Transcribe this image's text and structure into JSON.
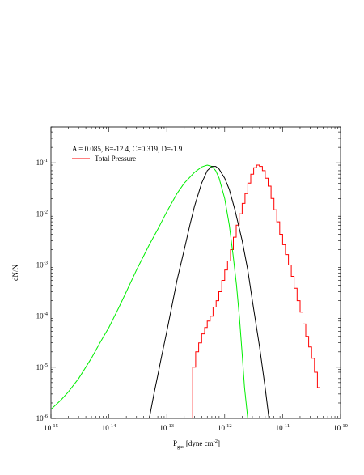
{
  "chart_data": {
    "type": "line",
    "xscale": "log",
    "yscale": "log",
    "xlim": [
      1e-15,
      1e-10
    ],
    "ylim": [
      1e-06,
      0.5
    ],
    "x_tick_labels": [
      {
        "base": "10",
        "exp": "-15"
      },
      {
        "base": "10",
        "exp": "-14"
      },
      {
        "base": "10",
        "exp": "-13"
      },
      {
        "base": "10",
        "exp": "-12"
      },
      {
        "base": "10",
        "exp": "-11"
      },
      {
        "base": "10",
        "exp": "-10"
      }
    ],
    "y_tick_labels": [
      {
        "base": "10",
        "exp": "-6"
      },
      {
        "base": "10",
        "exp": "-5"
      },
      {
        "base": "10",
        "exp": "-4"
      },
      {
        "base": "10",
        "exp": "-3"
      },
      {
        "base": "10",
        "exp": "-2"
      },
      {
        "base": "10",
        "exp": "-1"
      }
    ],
    "xlabel": {
      "prefix": "P",
      "sub": "gas",
      "mid": " [dyne cm",
      "sup": "-2",
      "suffix": "]"
    },
    "ylabel": "dN/N",
    "annotation": "A = 0.085, B=-12.4, C=0.319, D=-1.9",
    "grid": false,
    "legend_position": "top-left",
    "series": [
      {
        "name": "Total Pressure",
        "kind": "step",
        "color": "#ff0000",
        "x": [
          2.5e-13,
          2.8e-13,
          3.15e-13,
          3.55e-13,
          4e-13,
          4.5e-13,
          5e-13,
          5.6e-13,
          6.3e-13,
          7.1e-13,
          7.9e-13,
          8.9e-13,
          1e-12,
          1.12e-12,
          1.26e-12,
          1.41e-12,
          1.58e-12,
          1.78e-12,
          2e-12,
          2.24e-12,
          2.51e-12,
          2.82e-12,
          3.16e-12,
          3.55e-12,
          3.98e-12,
          4.47e-12,
          5.01e-12,
          5.62e-12,
          6.31e-12,
          7.08e-12,
          7.94e-12,
          8.91e-12,
          1e-11,
          1.12e-11,
          1.26e-11,
          1.41e-11,
          1.58e-11,
          1.78e-11,
          2e-11,
          2.24e-11,
          2.51e-11,
          2.82e-11,
          3.16e-11,
          3.55e-11,
          3.98e-11
        ],
        "y": [
          1e-06,
          1e-05,
          2e-05,
          3e-05,
          4.5e-05,
          6e-05,
          8e-05,
          0.0001,
          0.00015,
          0.0002,
          0.0003,
          0.0005,
          0.0008,
          0.0012,
          0.002,
          0.0035,
          0.006,
          0.01,
          0.016,
          0.025,
          0.04,
          0.06,
          0.08,
          0.09,
          0.085,
          0.07,
          0.05,
          0.035,
          0.02,
          0.012,
          0.007,
          0.004,
          0.0025,
          0.0016,
          0.001,
          0.0006,
          0.00035,
          0.0002,
          0.00012,
          7e-05,
          4e-05,
          2.5e-05,
          1.5e-05,
          8e-06,
          4e-06
        ]
      },
      {
        "name": "",
        "kind": "curve",
        "color": "#00ee00",
        "x": [
          1e-15,
          1.5e-15,
          2e-15,
          3e-15,
          5e-15,
          7e-15,
          1e-14,
          1.5e-14,
          2e-14,
          3e-14,
          5e-14,
          7e-14,
          1e-13,
          1.5e-13,
          2e-13,
          3e-13,
          4e-13,
          5e-13,
          6e-13,
          7e-13,
          8e-13,
          1e-12,
          1.2e-12,
          1.4e-12,
          1.6e-12,
          1.8e-12,
          2e-12,
          2.2e-12,
          2.5e-12
        ],
        "y": [
          1.5e-06,
          2.3e-06,
          3.3e-06,
          6e-06,
          1.5e-05,
          3e-05,
          6e-05,
          0.00015,
          0.0003,
          0.0008,
          0.0025,
          0.005,
          0.011,
          0.025,
          0.04,
          0.065,
          0.083,
          0.09,
          0.085,
          0.07,
          0.05,
          0.02,
          0.006,
          0.0015,
          0.0004,
          9e-05,
          1.8e-05,
          4e-06,
          1e-06
        ]
      },
      {
        "name": "",
        "kind": "curve",
        "color": "#000000",
        "x": [
          5e-14,
          6e-14,
          7e-14,
          8e-14,
          1e-13,
          1.2e-13,
          1.5e-13,
          2e-13,
          2.5e-13,
          3e-13,
          4e-13,
          5e-13,
          6e-13,
          7e-13,
          8e-13,
          1e-12,
          1.2e-12,
          1.5e-12,
          2e-12,
          2.5e-12,
          3e-12,
          4e-12,
          5e-12,
          5.8e-12
        ],
        "y": [
          1e-06,
          3e-06,
          7e-06,
          1.5e-05,
          5e-05,
          0.00014,
          0.0005,
          0.002,
          0.006,
          0.014,
          0.04,
          0.07,
          0.085,
          0.085,
          0.075,
          0.05,
          0.03,
          0.012,
          0.003,
          0.0008,
          0.0002,
          2.5e-05,
          4e-06,
          1e-06
        ]
      }
    ]
  }
}
